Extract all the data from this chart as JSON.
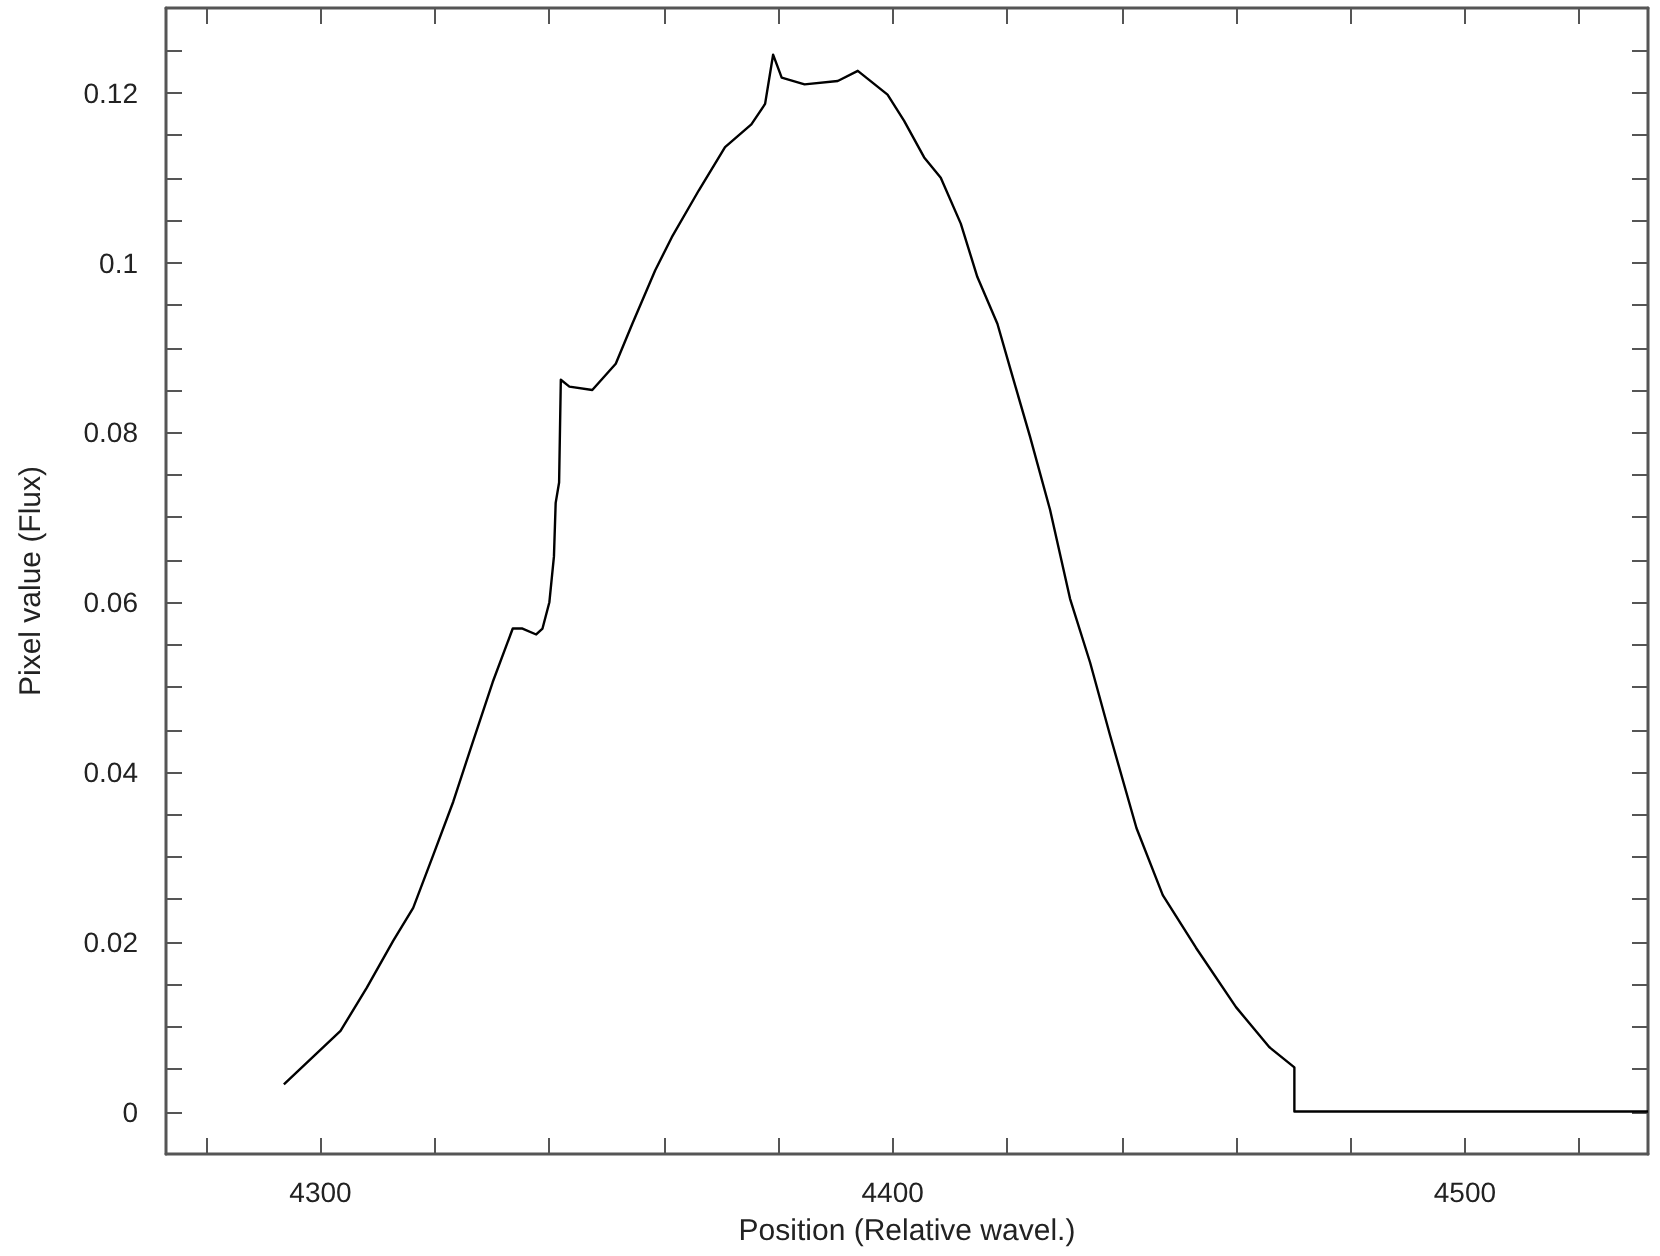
{
  "chart_data": {
    "type": "line",
    "xlabel": "Position (Relative wavel.)",
    "ylabel": "Pixel value (Flux)",
    "xlim": [
      4273,
      4532
    ],
    "ylim": [
      -0.005,
      0.13
    ],
    "xticks": [
      {
        "value": 4280,
        "label": null
      },
      4300,
      {
        "value": 4320,
        "label": null
      },
      {
        "value": 4340,
        "label": null
      },
      {
        "value": 4360,
        "label": null
      },
      {
        "value": 4380,
        "label": null
      },
      4400,
      {
        "value": 4420,
        "label": null
      },
      {
        "value": 4440,
        "label": null
      },
      {
        "value": 4460,
        "label": null
      },
      {
        "value": 4480,
        "label": null
      },
      4500,
      {
        "value": 4520,
        "label": null
      }
    ],
    "yticks": [
      0,
      {
        "value": 0.005,
        "label": null
      },
      {
        "value": 0.01,
        "label": null
      },
      {
        "value": 0.015,
        "label": null
      },
      0.02,
      {
        "value": 0.025,
        "label": null
      },
      {
        "value": 0.03,
        "label": null
      },
      {
        "value": 0.035,
        "label": null
      },
      0.04,
      {
        "value": 0.045,
        "label": null
      },
      {
        "value": 0.05,
        "label": null
      },
      {
        "value": 0.055,
        "label": null
      },
      0.06,
      {
        "value": 0.065,
        "label": null
      },
      {
        "value": 0.07,
        "label": null
      },
      {
        "value": 0.075,
        "label": null
      },
      0.08,
      {
        "value": 0.085,
        "label": null
      },
      {
        "value": 0.09,
        "label": null
      },
      {
        "value": 0.095,
        "label": null
      },
      0.1,
      {
        "value": 0.105,
        "label": null
      },
      {
        "value": 0.11,
        "label": null
      },
      {
        "value": 0.115,
        "label": null
      },
      0.12,
      {
        "value": 0.125,
        "label": null
      }
    ],
    "grid": false,
    "marker": "none",
    "line_style": "solid",
    "series": [
      {
        "color": "#000000",
        "x": [
          4293.6,
          4303.5,
          4308.1,
          4312.7,
          4316.2,
          4319.7,
          4323.2,
          4326.6,
          4330.1,
          4333.6,
          4335.3,
          4337.7,
          4338.8,
          4340,
          4340.8,
          4341.1,
          4341.7,
          4342,
          4343.5,
          4347.5,
          4351.6,
          4354.5,
          4358.5,
          4361.4,
          4366.1,
          4370.7,
          4375.3,
          4377.7,
          4379.1,
          4380.6,
          4384.6,
          4390.4,
          4393.9,
          4399.1,
          4402,
          4405.5,
          4408.4,
          4411.9,
          4414.8,
          4418.3,
          4420.6,
          4424,
          4427.5,
          4431,
          4434.5,
          4438,
          4442.6,
          4447.2,
          4453,
          4460,
          4465.8,
          4470.2,
          4470.2,
          4532
        ],
        "values": [
          0.0032,
          0.0095,
          0.0146,
          0.0201,
          0.024,
          0.0302,
          0.0365,
          0.0435,
          0.0506,
          0.0569,
          0.0569,
          0.0562,
          0.0569,
          0.06,
          0.0654,
          0.0717,
          0.0741,
          0.0862,
          0.0854,
          0.085,
          0.0881,
          0.0928,
          0.0991,
          0.103,
          0.1085,
          0.1136,
          0.1163,
          0.1187,
          0.1245,
          0.1218,
          0.121,
          0.1214,
          0.1226,
          0.1198,
          0.1167,
          0.1124,
          0.11,
          0.1046,
          0.0983,
          0.0928,
          0.0874,
          0.0795,
          0.0709,
          0.0604,
          0.0529,
          0.0443,
          0.0334,
          0.0255,
          0.0193,
          0.0123,
          0.0076,
          0.0052,
          0,
          0
        ]
      }
    ]
  }
}
